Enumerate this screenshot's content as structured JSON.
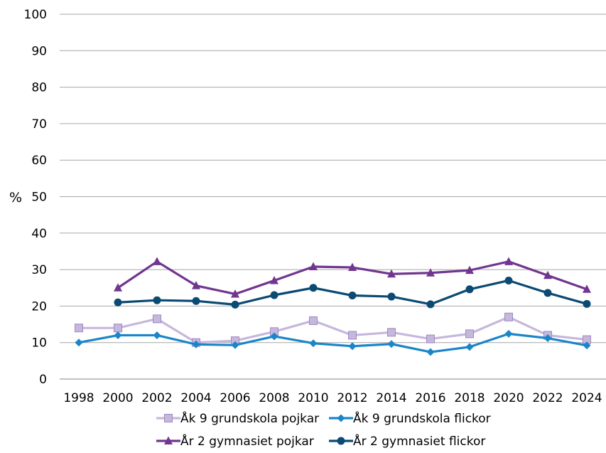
{
  "chart_data": {
    "type": "line",
    "title": "",
    "xlabel": "",
    "ylabel": "%",
    "ylim": [
      0,
      100
    ],
    "yticks": [
      0,
      10,
      20,
      30,
      40,
      50,
      60,
      70,
      80,
      90,
      100
    ],
    "grid": "horizontal",
    "legend_position": "bottom",
    "categories": [
      "1998",
      "2000",
      "2002",
      "2004",
      "2006",
      "2008",
      "2010",
      "2012",
      "2014",
      "2016",
      "2018",
      "2020",
      "2022",
      "2024"
    ],
    "series": [
      {
        "name": "Åk 9 grundskola pojkar",
        "color": "#c6b7dd",
        "marker": "square",
        "values": [
          14,
          14,
          16.5,
          10,
          10.5,
          13,
          16,
          12,
          12.8,
          11,
          12.4,
          17,
          12,
          10.8
        ]
      },
      {
        "name": "Åk 9 grundskola flickor",
        "color": "#1a86c9",
        "marker": "diamond",
        "values": [
          10,
          12,
          12,
          9.5,
          9.3,
          11.7,
          9.8,
          9,
          9.6,
          7.4,
          8.8,
          12.4,
          11.2,
          9.2
        ]
      },
      {
        "name": "År 2 gymnasiet pojkar",
        "color": "#71368f",
        "marker": "triangle",
        "values": [
          null,
          25,
          32.2,
          25.6,
          23.3,
          27,
          30.8,
          30.6,
          28.8,
          29.1,
          29.8,
          32.2,
          28.4,
          24.6
        ]
      },
      {
        "name": "År 2 gymnasiet flickor",
        "color": "#0a4a73",
        "marker": "circle",
        "values": [
          null,
          21,
          21.6,
          21.4,
          20.4,
          23,
          25,
          22.9,
          22.6,
          20.5,
          24.6,
          27,
          23.6,
          20.6
        ]
      }
    ]
  }
}
